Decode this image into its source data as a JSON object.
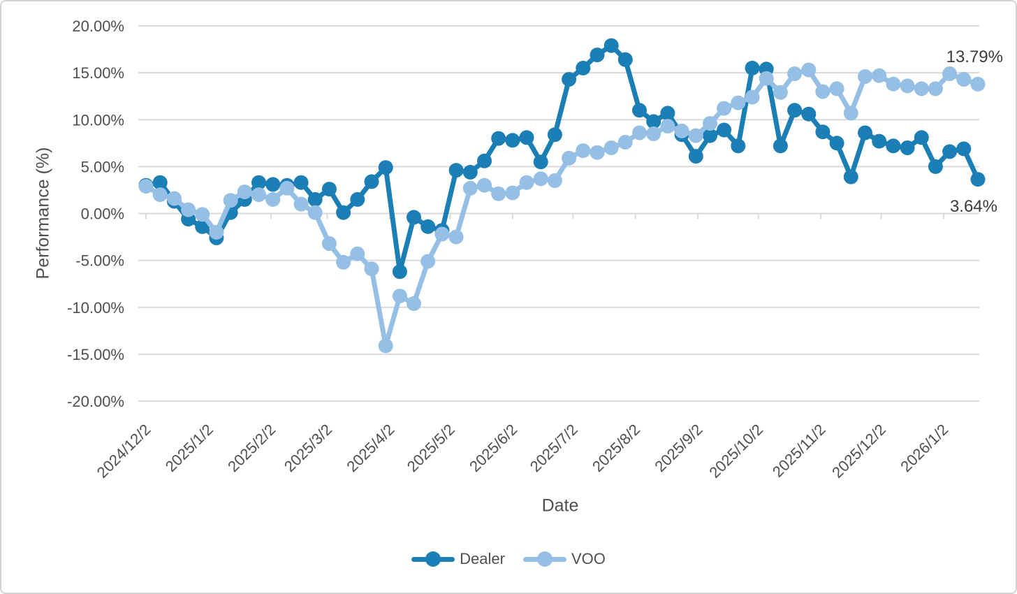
{
  "chart_data": {
    "type": "line",
    "title": "",
    "xlabel": "Date",
    "ylabel": "Performance (%)",
    "ylim": [
      -20,
      20
    ],
    "y_tick_step": 5,
    "y_tick_labels": [
      "20.00%",
      "15.00%",
      "10.00%",
      "5.00%",
      "0.00%",
      "-5.00%",
      "-10.00%",
      "-15.00%",
      "-20.00%"
    ],
    "x_tick_labels": [
      "2024/12/2",
      "2025/1/2",
      "2025/2/2",
      "2025/3/2",
      "2025/4/2",
      "2025/5/2",
      "2025/6/2",
      "2025/7/2",
      "2025/8/2",
      "2025/9/2",
      "2025/10/2",
      "2025/11/2",
      "2025/12/2",
      "2026/1/2"
    ],
    "x_tick_weeks": [
      0,
      4.43,
      8.86,
      12.86,
      17.29,
      21.57,
      26.0,
      30.29,
      34.71,
      39.14,
      43.43,
      47.86,
      52.14,
      56.57
    ],
    "grid": true,
    "legend_position": "bottom",
    "colors": {
      "gridline": "#d9d9d9",
      "axis_text": "#4f4f4f",
      "annotation_text": "#3b3b3b"
    },
    "series": [
      {
        "name": "Dealer",
        "color": "#1b7eb5",
        "end_label": "3.64%",
        "values": [
          3.0,
          3.3,
          1.3,
          -0.6,
          -1.4,
          -2.6,
          0.1,
          1.5,
          3.3,
          3.1,
          3.0,
          3.3,
          1.5,
          2.6,
          0.1,
          1.5,
          3.4,
          4.9,
          -6.2,
          -0.4,
          -1.4,
          -1.8,
          4.6,
          4.4,
          5.6,
          8.0,
          7.8,
          8.1,
          5.5,
          8.4,
          14.3,
          15.5,
          16.9,
          17.9,
          16.4,
          11.0,
          9.8,
          10.7,
          8.4,
          6.1,
          8.3,
          8.9,
          7.2,
          15.5,
          15.4,
          7.2,
          11.0,
          10.6,
          8.7,
          7.5,
          3.9,
          8.6,
          7.7,
          7.2,
          7.0,
          8.1,
          5.0,
          6.6,
          6.9,
          3.64
        ]
      },
      {
        "name": "VOO",
        "color": "#95bfe5",
        "end_label": "13.79%",
        "values": [
          2.9,
          2.0,
          1.6,
          0.4,
          -0.1,
          -2.0,
          1.4,
          2.3,
          2.0,
          1.5,
          2.7,
          1.0,
          0.1,
          -3.2,
          -5.2,
          -4.3,
          -5.9,
          -14.1,
          -8.8,
          -9.6,
          -5.1,
          -2.2,
          -2.5,
          2.7,
          3.0,
          2.1,
          2.2,
          3.3,
          3.7,
          3.5,
          5.9,
          6.7,
          6.5,
          7.0,
          7.6,
          8.6,
          8.5,
          9.3,
          8.8,
          8.3,
          9.6,
          11.2,
          11.8,
          12.4,
          14.4,
          12.9,
          14.9,
          15.3,
          13.0,
          13.3,
          10.7,
          14.6,
          14.7,
          13.8,
          13.6,
          13.3,
          13.3,
          14.9,
          14.3,
          13.79
        ]
      }
    ]
  }
}
